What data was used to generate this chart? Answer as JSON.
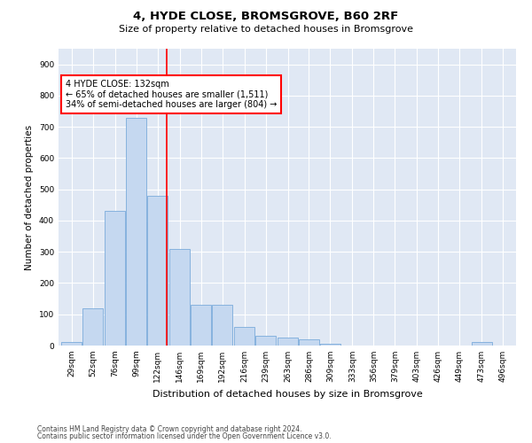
{
  "title": "4, HYDE CLOSE, BROMSGROVE, B60 2RF",
  "subtitle": "Size of property relative to detached houses in Bromsgrove",
  "xlabel": "Distribution of detached houses by size in Bromsgrove",
  "ylabel": "Number of detached properties",
  "footer1": "Contains HM Land Registry data © Crown copyright and database right 2024.",
  "footer2": "Contains public sector information licensed under the Open Government Licence v3.0.",
  "bar_color": "#c5d8f0",
  "bar_edge_color": "#7aabdb",
  "bg_color": "#e0e8f4",
  "annotation_text": "4 HYDE CLOSE: 132sqm\n← 65% of detached houses are smaller (1,511)\n34% of semi-detached houses are larger (804) →",
  "red_line_x": 132,
  "categories": [
    29,
    52,
    76,
    99,
    122,
    146,
    169,
    192,
    216,
    239,
    263,
    286,
    309,
    333,
    356,
    379,
    403,
    426,
    449,
    473,
    496
  ],
  "values": [
    10,
    120,
    430,
    730,
    480,
    310,
    130,
    130,
    60,
    30,
    25,
    20,
    5,
    0,
    0,
    0,
    0,
    0,
    0,
    10,
    0
  ],
  "ylim": [
    0,
    950
  ],
  "yticks": [
    0,
    100,
    200,
    300,
    400,
    500,
    600,
    700,
    800,
    900
  ],
  "bin_width": 23,
  "title_fontsize": 9.5,
  "subtitle_fontsize": 8,
  "axis_label_fontsize": 7.5,
  "tick_fontsize": 6.5,
  "footer_fontsize": 5.5,
  "annotation_fontsize": 7
}
